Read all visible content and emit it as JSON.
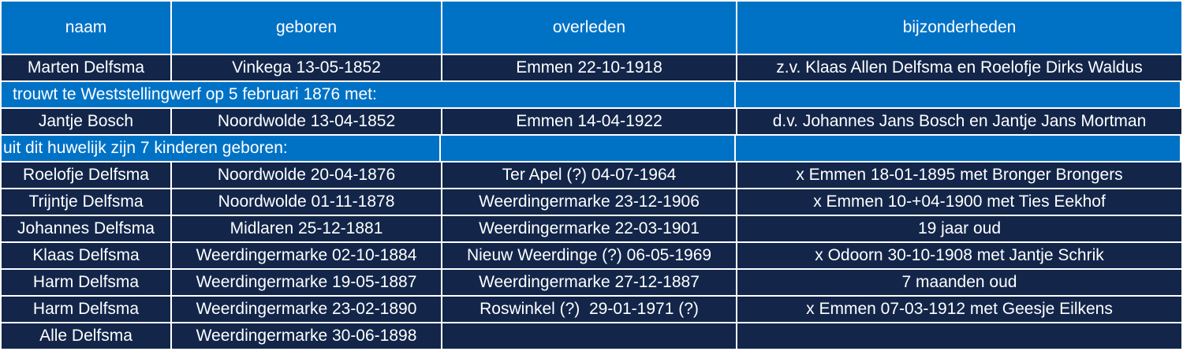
{
  "headers": [
    "naam",
    "geboren",
    "overleden",
    "bijzonderheden"
  ],
  "parents": [
    {
      "naam": "Marten Delfsma",
      "geboren": "Vinkega 13-05-1852",
      "overleden": "Emmen 22-10-1918",
      "bijzonderheden": "z.v. Klaas Allen Delfsma en Roelofje Dirks Waldus"
    }
  ],
  "marriage_note": "trouwt te Weststellingwerf op 5 februari 1876 met:",
  "spouse": {
    "naam": "Jantje Bosch",
    "geboren": "Noordwolde 13-04-1852",
    "overleden": "Emmen 14-04-1922",
    "bijzonderheden": "d.v. Johannes Jans Bosch en Jantje Jans Mortman"
  },
  "children_note": "uit dit huwelijk zijn 7 kinderen geboren:",
  "children": [
    {
      "naam": "Roelofje Delfsma",
      "geboren": "Noordwolde 20-04-1876",
      "overleden": "Ter Apel (?) 04-07-1964",
      "bijzonderheden": "x Emmen 18-01-1895 met Bronger Brongers"
    },
    {
      "naam": "Trijntje Delfsma",
      "geboren": "Noordwolde 01-11-1878",
      "overleden": "Weerdingermarke 23-12-1906",
      "bijzonderheden": "x Emmen 10-+04-1900 met Ties Eekhof"
    },
    {
      "naam": "Johannes Delfsma",
      "geboren": "Midlaren 25-12-1881",
      "overleden": "Weerdingermarke 22-03-1901",
      "bijzonderheden": "19 jaar oud"
    },
    {
      "naam": "Klaas Delfsma",
      "geboren": "Weerdingermarke 02-10-1884",
      "overleden": "Nieuw Weerdinge (?) 06-05-1969",
      "bijzonderheden": "x Odoorn 30-10-1908 met Jantje Schrik"
    },
    {
      "naam": "Harm Delfsma",
      "geboren": "Weerdingermarke 19-05-1887",
      "overleden": "Weerdingermarke 27-12-1887",
      "bijzonderheden": "7 maanden oud"
    },
    {
      "naam": "Harm Delfsma",
      "geboren": "Weerdingermarke 23-02-1890",
      "overleden": "Roswinkel (?)  29-01-1971 (?)",
      "bijzonderheden": "x Emmen 07-03-1912 met Geesje Eilkens"
    },
    {
      "naam": "Alle Delfsma",
      "geboren": "Weerdingermarke 30-06-1898",
      "overleden": "",
      "bijzonderheden": ""
    }
  ],
  "colors": {
    "header": "#0072c6",
    "row": "#13264a",
    "text": "#ffffff"
  }
}
